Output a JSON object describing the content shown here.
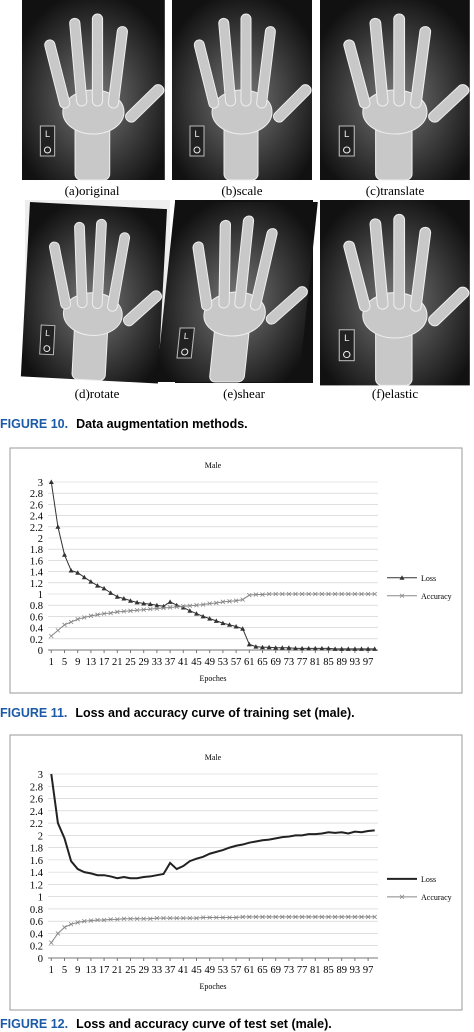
{
  "figure10": {
    "panels": [
      "(a)original",
      "(b)scale",
      "(c)translate",
      "(d)rotate",
      "(e)shear",
      "(f)elastic"
    ],
    "figure_label": "FIGURE 10.",
    "caption": "Data augmentation methods."
  },
  "chart_data": [
    {
      "type": "line",
      "title": "Male",
      "x_label": "Epoches",
      "figure_label": "FIGURE 11.",
      "caption": "Loss and accuracy curve of training set (male).",
      "x": [
        1,
        3,
        5,
        7,
        9,
        11,
        13,
        15,
        17,
        19,
        21,
        23,
        25,
        27,
        29,
        31,
        33,
        35,
        37,
        39,
        41,
        43,
        45,
        47,
        49,
        51,
        53,
        55,
        57,
        59,
        61,
        63,
        65,
        67,
        69,
        71,
        73,
        75,
        77,
        79,
        81,
        83,
        85,
        87,
        89,
        91,
        93,
        95,
        97,
        99
      ],
      "xlim": [
        0,
        100
      ],
      "xticks": [
        1,
        5,
        9,
        13,
        17,
        21,
        25,
        29,
        33,
        37,
        41,
        45,
        49,
        53,
        57,
        61,
        65,
        69,
        73,
        77,
        81,
        85,
        89,
        93,
        97
      ],
      "ylim": [
        0,
        3
      ],
      "yticks": [
        0,
        0.2,
        0.4,
        0.6,
        0.8,
        1,
        1.2,
        1.4,
        1.6,
        1.8,
        2,
        2.2,
        2.4,
        2.6,
        2.8,
        3
      ],
      "grid": true,
      "series": [
        {
          "name": "Loss",
          "color": "#333333",
          "marker": "triangle",
          "values": [
            3,
            2.2,
            1.7,
            1.42,
            1.38,
            1.3,
            1.22,
            1.15,
            1.1,
            1.02,
            0.95,
            0.92,
            0.88,
            0.85,
            0.83,
            0.82,
            0.8,
            0.78,
            0.86,
            0.8,
            0.76,
            0.7,
            0.65,
            0.6,
            0.56,
            0.52,
            0.48,
            0.45,
            0.42,
            0.38,
            0.1,
            0.06,
            0.05,
            0.05,
            0.04,
            0.04,
            0.04,
            0.03,
            0.03,
            0.03,
            0.03,
            0.03,
            0.03,
            0.02,
            0.02,
            0.02,
            0.02,
            0.02,
            0.02,
            0.02
          ]
        },
        {
          "name": "Accuracy",
          "color": "#888888",
          "marker": "x",
          "values": [
            0.25,
            0.35,
            0.45,
            0.5,
            0.55,
            0.58,
            0.61,
            0.63,
            0.65,
            0.66,
            0.68,
            0.69,
            0.7,
            0.71,
            0.72,
            0.73,
            0.74,
            0.75,
            0.76,
            0.77,
            0.78,
            0.79,
            0.8,
            0.81,
            0.83,
            0.84,
            0.86,
            0.87,
            0.88,
            0.9,
            0.98,
            0.99,
            0.99,
            1,
            1,
            1,
            1,
            1,
            1,
            1,
            1,
            1,
            1,
            1,
            1,
            1,
            1,
            1,
            1,
            1
          ]
        }
      ]
    },
    {
      "type": "line",
      "title": "Male",
      "x_label": "Epoches",
      "figure_label": "FIGURE 12.",
      "caption": "Loss and accuracy curve of test set (male).",
      "x": [
        1,
        3,
        5,
        7,
        9,
        11,
        13,
        15,
        17,
        19,
        21,
        23,
        25,
        27,
        29,
        31,
        33,
        35,
        37,
        39,
        41,
        43,
        45,
        47,
        49,
        51,
        53,
        55,
        57,
        59,
        61,
        63,
        65,
        67,
        69,
        71,
        73,
        75,
        77,
        79,
        81,
        83,
        85,
        87,
        89,
        91,
        93,
        95,
        97,
        99
      ],
      "xlim": [
        0,
        100
      ],
      "xticks": [
        1,
        5,
        9,
        13,
        17,
        21,
        25,
        29,
        33,
        37,
        41,
        45,
        49,
        53,
        57,
        61,
        65,
        69,
        73,
        77,
        81,
        85,
        89,
        93,
        97
      ],
      "ylim": [
        0,
        3
      ],
      "yticks": [
        0,
        0.2,
        0.4,
        0.6,
        0.8,
        1,
        1.2,
        1.4,
        1.6,
        1.8,
        2,
        2.2,
        2.4,
        2.6,
        2.8,
        3
      ],
      "grid": true,
      "series": [
        {
          "name": "Loss",
          "color": "#222222",
          "marker": "none",
          "values": [
            3,
            2.2,
            1.95,
            1.58,
            1.45,
            1.4,
            1.38,
            1.35,
            1.35,
            1.33,
            1.3,
            1.32,
            1.3,
            1.3,
            1.32,
            1.33,
            1.35,
            1.37,
            1.55,
            1.45,
            1.5,
            1.58,
            1.62,
            1.65,
            1.7,
            1.73,
            1.76,
            1.8,
            1.83,
            1.85,
            1.88,
            1.9,
            1.92,
            1.93,
            1.95,
            1.97,
            1.98,
            2,
            2,
            2.02,
            2.02,
            2.03,
            2.05,
            2.04,
            2.05,
            2.03,
            2.06,
            2.05,
            2.07,
            2.08
          ]
        },
        {
          "name": "Accuracy",
          "color": "#888888",
          "marker": "x",
          "values": [
            0.25,
            0.4,
            0.5,
            0.55,
            0.58,
            0.6,
            0.61,
            0.62,
            0.62,
            0.63,
            0.63,
            0.64,
            0.64,
            0.64,
            0.64,
            0.64,
            0.65,
            0.65,
            0.65,
            0.65,
            0.65,
            0.65,
            0.65,
            0.66,
            0.66,
            0.66,
            0.66,
            0.66,
            0.66,
            0.67,
            0.67,
            0.67,
            0.67,
            0.67,
            0.67,
            0.67,
            0.67,
            0.67,
            0.67,
            0.67,
            0.67,
            0.67,
            0.67,
            0.67,
            0.67,
            0.67,
            0.67,
            0.67,
            0.67,
            0.67
          ]
        }
      ]
    }
  ]
}
